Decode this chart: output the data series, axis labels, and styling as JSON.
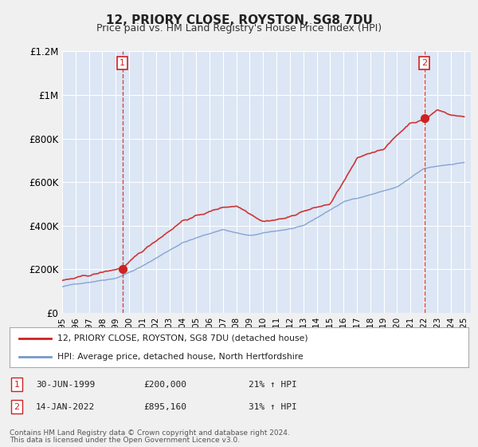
{
  "title": "12, PRIORY CLOSE, ROYSTON, SG8 7DU",
  "subtitle": "Price paid vs. HM Land Registry's House Price Index (HPI)",
  "fig_bg_color": "#f0f0f0",
  "plot_bg_color": "#dce6f4",
  "grid_color": "#ffffff",
  "red_color": "#cc2222",
  "blue_color": "#7799cc",
  "ylim": [
    0,
    1200000
  ],
  "yticks": [
    0,
    200000,
    400000,
    600000,
    800000,
    1000000,
    1200000
  ],
  "ytick_labels": [
    "£0",
    "£200K",
    "£400K",
    "£600K",
    "£800K",
    "£1M",
    "£1.2M"
  ],
  "xmin": 1995.0,
  "xmax": 2025.5,
  "legend_red": "12, PRIORY CLOSE, ROYSTON, SG8 7DU (detached house)",
  "legend_blue": "HPI: Average price, detached house, North Hertfordshire",
  "sale1_label": "1",
  "sale1_date": "30-JUN-1999",
  "sale1_price": "£200,000",
  "sale1_hpi": "21% ↑ HPI",
  "sale1_x": 1999.5,
  "sale1_y": 200000,
  "sale2_label": "2",
  "sale2_date": "14-JAN-2022",
  "sale2_price": "£895,160",
  "sale2_hpi": "31% ↑ HPI",
  "sale2_x": 2022.04,
  "sale2_y": 895160,
  "footer1": "Contains HM Land Registry data © Crown copyright and database right 2024.",
  "footer2": "This data is licensed under the Open Government Licence v3.0."
}
